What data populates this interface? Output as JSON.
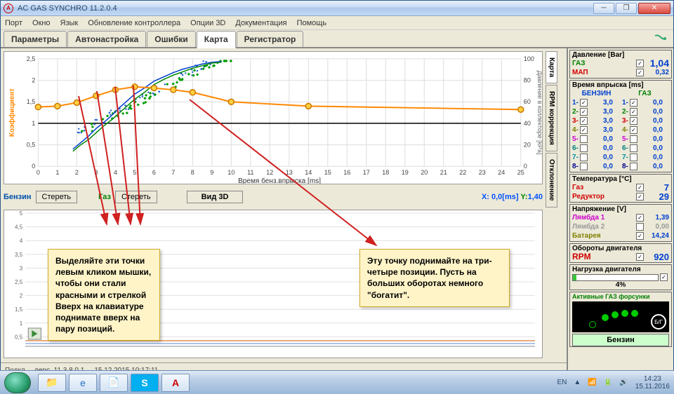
{
  "window": {
    "title": "AC GAS SYNCHRO  11.2.0.4",
    "menu": [
      "Порт",
      "Окно",
      "Язык",
      "Обновление контроллера",
      "Опции 3D",
      "Документация",
      "Помощь"
    ],
    "tabs": [
      "Параметры",
      "Автонастройка",
      "Ошибки",
      "Карта",
      "Регистратор"
    ],
    "active_tab": 3
  },
  "chart": {
    "ylabel": "Коэффициент",
    "ylabel2": "Давление в коллекторе  [kPa]",
    "xlabel": "Время бенз.впрыска [ms]",
    "x_ticks": [
      0,
      1,
      2,
      3,
      4,
      5,
      6,
      7,
      8,
      9,
      10,
      11,
      12,
      13,
      14,
      15,
      16,
      17,
      18,
      19,
      20,
      21,
      22,
      23,
      24,
      25
    ],
    "y_ticks": [
      0,
      "0,5",
      1,
      "1,5",
      2,
      "2,5"
    ],
    "y2_ticks": [
      0,
      20,
      40,
      60,
      80,
      100
    ],
    "orange": {
      "color": "#ff8800",
      "x": [
        0,
        1,
        2,
        3,
        4,
        5,
        6,
        7,
        8,
        10,
        14,
        25
      ],
      "y": [
        1.38,
        1.4,
        1.48,
        1.64,
        1.78,
        1.85,
        1.82,
        1.78,
        1.72,
        1.5,
        1.4,
        1.32
      ]
    },
    "blue": {
      "color": "#0040d0",
      "x": [
        1.8,
        2.2,
        2.6,
        3.0,
        3.4,
        3.8,
        4.2,
        4.6,
        5.0,
        5.5,
        6.0,
        6.5,
        7.0,
        7.5,
        8.0,
        8.5,
        9.0,
        9.5
      ],
      "y": [
        0.4,
        0.55,
        0.7,
        0.88,
        1.02,
        1.18,
        1.36,
        1.52,
        1.68,
        1.82,
        1.98,
        2.08,
        2.18,
        2.26,
        2.32,
        2.38,
        2.42,
        2.44
      ]
    },
    "green": {
      "color": "#008800",
      "x": [
        1.8,
        2.2,
        2.6,
        3.0,
        3.4,
        3.8,
        4.2,
        4.6,
        5.0,
        5.5,
        6.0,
        6.5,
        7.0,
        7.5,
        8.0,
        8.5,
        9.0,
        9.5
      ],
      "y": [
        0.35,
        0.5,
        0.62,
        0.78,
        0.94,
        1.08,
        1.24,
        1.4,
        1.56,
        1.72,
        1.9,
        2.02,
        2.12,
        2.2,
        2.28,
        2.34,
        2.4,
        2.42
      ]
    },
    "nodes_x": [
      2,
      3,
      4,
      5,
      8
    ],
    "bg": "#ffffff",
    "grid": "#cfcfcf"
  },
  "vtabs": [
    "Карта",
    "RPM коррекция",
    "Отклонение"
  ],
  "controls": {
    "benzin": "Бензин",
    "erase": "Стереть",
    "gas": "Газ",
    "view3d": "Вид 3D",
    "x_lbl": "X:",
    "x_val": "0,0[ms]",
    "y_lbl": "Y:",
    "y_val": "1,40"
  },
  "lower": {
    "y_ticks": [
      "0,5",
      1,
      "1,5",
      2,
      "2,5",
      3,
      "3,5",
      4,
      "4,5",
      5
    ]
  },
  "side": {
    "pressure": {
      "hdr": "Давление  [Bar]",
      "gas_lbl": "ГАЗ",
      "gas": "1,04",
      "map_lbl": "МАП",
      "map": "0,32"
    },
    "inj": {
      "hdr": "Время впрыска  [ms]",
      "b_lbl": "БЕНЗИН",
      "g_lbl": "ГАЗ",
      "rows": [
        [
          "1-",
          "3,0",
          "1-",
          "0,0"
        ],
        [
          "2-",
          "3,0",
          "2-",
          "0,0"
        ],
        [
          "3-",
          "3,0",
          "3-",
          "0,0"
        ],
        [
          "4-",
          "3,0",
          "4-",
          "0,0"
        ],
        [
          "5-",
          "0,0",
          "5-",
          "0,0"
        ],
        [
          "6-",
          "0,0",
          "6-",
          "0,0"
        ],
        [
          "7-",
          "0,0",
          "7-",
          "0,0"
        ],
        [
          "8-",
          "0,0",
          "8-",
          "0,0"
        ]
      ]
    },
    "temp": {
      "hdr": "Температура  [°C]",
      "gas_lbl": "Газ",
      "gas": "7",
      "red_lbl": "Редуктор",
      "red": "29"
    },
    "volt": {
      "hdr": "Напряжение  [V]",
      "l1_lbl": "Лямбда 1",
      "l1": "1,39",
      "l2_lbl": "Лямбда 2",
      "l2": "0,00",
      "bat_lbl": "Батарея",
      "bat": "14,24"
    },
    "rpm": {
      "hdr": "Обороты двигателя",
      "lbl": "RPM",
      "val": "920"
    },
    "load": {
      "hdr": "Нагрузка двигателя",
      "val": "4%"
    },
    "active": "Активные ГАЗ форсунки",
    "mode": "Бензин"
  },
  "status": {
    "conn": "Подкл",
    "ver": "верс. 11.3  8.0.1",
    "date": "15.12.2015 10:17:11"
  },
  "annot1": "Выделяйте эти точки левым кликом мышки, чтобы они стали красными и стрелкой Вверх на клавиатуре поднимате вверх на пару позиций.",
  "annot2": "Эту точку поднимайте на три-четыре позиции. Пусть на больших оборотах немного \"богатит\".",
  "tray": {
    "lang": "EN",
    "time": "14:23",
    "date": "15.11.2016"
  }
}
